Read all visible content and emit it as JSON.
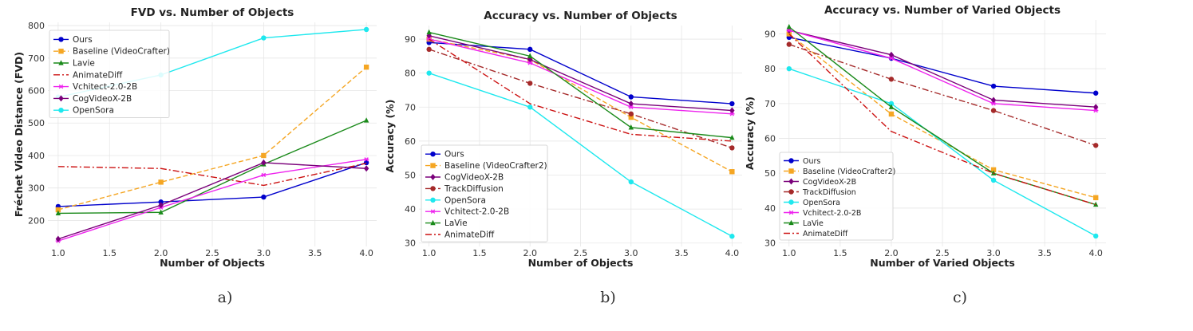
{
  "captions": [
    "a)",
    "b)",
    "c)"
  ],
  "chart_data": [
    {
      "type": "line",
      "title": "FVD vs. Number of Objects",
      "xlabel": "Number of Objects",
      "ylabel": "Fréchet Video Distance (FVD)",
      "xlim": [
        0.9,
        4.1
      ],
      "ylim": [
        120,
        810
      ],
      "xticks": [
        1.0,
        1.5,
        2.0,
        2.5,
        3.0,
        3.5,
        4.0
      ],
      "yticks": [
        200,
        300,
        400,
        500,
        600,
        700,
        800
      ],
      "grid": true,
      "legend_position": "top-left",
      "x": [
        1,
        2,
        3,
        4
      ],
      "series": [
        {
          "name": "Ours",
          "values": [
            243,
            257,
            272,
            378
          ],
          "color": "#0000cc",
          "style": "solid",
          "marker": "circle"
        },
        {
          "name": "Baseline (VideoCrafter)",
          "values": [
            233,
            318,
            400,
            672
          ],
          "color": "#f5a623",
          "style": "dashed",
          "marker": "square"
        },
        {
          "name": "Lavie",
          "values": [
            222,
            225,
            373,
            508
          ],
          "color": "#1a8a1a",
          "style": "solid",
          "marker": "triangle"
        },
        {
          "name": "AnimateDiff",
          "values": [
            366,
            360,
            308,
            376
          ],
          "color": "#cc1111",
          "style": "dashdot",
          "marker": "none"
        },
        {
          "name": "Vchitect-2.0-2B",
          "values": [
            137,
            240,
            340,
            388
          ],
          "color": "#ee22ee",
          "style": "solid",
          "marker": "star"
        },
        {
          "name": "CogVideoX-2B",
          "values": [
            143,
            247,
            378,
            360
          ],
          "color": "#7a007a",
          "style": "solid",
          "marker": "diamond"
        },
        {
          "name": "OpenSora",
          "values": [
            580,
            648,
            762,
            788
          ],
          "color": "#1ee8ee",
          "style": "solid",
          "marker": "circle"
        }
      ]
    },
    {
      "type": "line",
      "title": "Accuracy vs. Number of Objects",
      "xlabel": "Number of Objects",
      "ylabel": "Accuracy (%)",
      "xlim": [
        0.9,
        4.1
      ],
      "ylim": [
        29,
        94
      ],
      "xticks": [
        1.0,
        1.5,
        2.0,
        2.5,
        3.0,
        3.5,
        4.0
      ],
      "yticks": [
        30,
        40,
        50,
        60,
        70,
        80,
        90
      ],
      "grid": true,
      "legend_position": "bottom-left",
      "x": [
        1,
        2,
        3,
        4
      ],
      "series": [
        {
          "name": "Ours",
          "values": [
            89,
            87,
            73,
            71
          ],
          "color": "#0000cc",
          "style": "solid",
          "marker": "circle"
        },
        {
          "name": "Baseline (VideoCrafter2)",
          "values": [
            90,
            84,
            67,
            51
          ],
          "color": "#f5a623",
          "style": "dashed",
          "marker": "square"
        },
        {
          "name": "CogVideoX-2B",
          "values": [
            91,
            84,
            71,
            69
          ],
          "color": "#7a007a",
          "style": "solid",
          "marker": "diamond"
        },
        {
          "name": "TrackDiffusion",
          "values": [
            87,
            77,
            68,
            58
          ],
          "color": "#a52a2a",
          "style": "dashdot",
          "marker": "circle"
        },
        {
          "name": "OpenSora",
          "values": [
            80,
            70,
            48,
            32
          ],
          "color": "#1ee8ee",
          "style": "solid",
          "marker": "circle"
        },
        {
          "name": "Vchitect-2.0-2B",
          "values": [
            90,
            83,
            70,
            68
          ],
          "color": "#ee22ee",
          "style": "solid",
          "marker": "star"
        },
        {
          "name": "LaVie",
          "values": [
            92,
            85,
            64,
            61
          ],
          "color": "#1a8a1a",
          "style": "solid",
          "marker": "triangle"
        },
        {
          "name": "AnimateDiff",
          "values": [
            90,
            71,
            62,
            60
          ],
          "color": "#cc1111",
          "style": "dashdot",
          "marker": "none"
        }
      ]
    },
    {
      "type": "line",
      "title": "Accuracy vs. Number of Varied Objects",
      "xlabel": "Number of Varied Objects",
      "ylabel": "Accuracy (%)",
      "xlim": [
        0.9,
        4.1
      ],
      "ylim": [
        29,
        94
      ],
      "xticks": [
        1.0,
        1.5,
        2.0,
        2.5,
        3.0,
        3.5,
        4.0
      ],
      "yticks": [
        30,
        40,
        50,
        60,
        70,
        80,
        90
      ],
      "grid": true,
      "legend_position": "bottom-left",
      "x": [
        1,
        2,
        3,
        4
      ],
      "series": [
        {
          "name": "Ours",
          "values": [
            89,
            83,
            75,
            73
          ],
          "color": "#0000cc",
          "style": "solid",
          "marker": "circle"
        },
        {
          "name": "Baseline (VideoCrafter2)",
          "values": [
            90,
            67,
            51,
            43
          ],
          "color": "#f5a623",
          "style": "dashed",
          "marker": "square"
        },
        {
          "name": "CogVideoX-2B",
          "values": [
            91,
            84,
            71,
            69
          ],
          "color": "#7a007a",
          "style": "solid",
          "marker": "diamond"
        },
        {
          "name": "TrackDiffusion",
          "values": [
            87,
            77,
            68,
            58
          ],
          "color": "#a52a2a",
          "style": "dashdot",
          "marker": "circle"
        },
        {
          "name": "OpenSora",
          "values": [
            80,
            70,
            48,
            32
          ],
          "color": "#1ee8ee",
          "style": "solid",
          "marker": "circle"
        },
        {
          "name": "Vchitect-2.0-2B",
          "values": [
            91,
            83,
            70,
            68
          ],
          "color": "#ee22ee",
          "style": "solid",
          "marker": "star"
        },
        {
          "name": "LaVie",
          "values": [
            92,
            69,
            50,
            41
          ],
          "color": "#1a8a1a",
          "style": "solid",
          "marker": "triangle"
        },
        {
          "name": "AnimateDiff",
          "values": [
            90,
            62,
            50,
            41
          ],
          "color": "#cc1111",
          "style": "dashdot",
          "marker": "none"
        }
      ]
    }
  ]
}
